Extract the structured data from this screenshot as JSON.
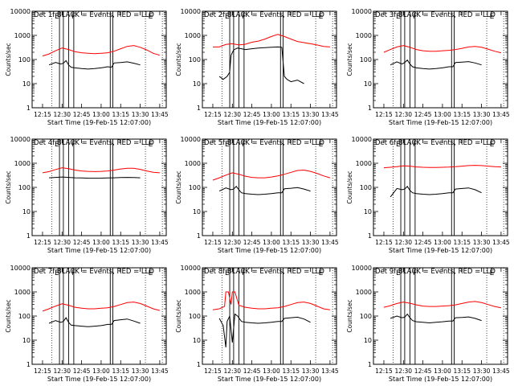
{
  "figure": {
    "panel_title_suffix": "BLACK = Events, RED = LLD",
    "xlabel": "Start Time (19-Feb-15 12:07:00)",
    "ylabel": "Counts/sec",
    "x_ticks": [
      "12:15",
      "12:30",
      "12:45",
      "13:00",
      "13:15",
      "13:30",
      "13:45"
    ],
    "y_ticks": [
      "1",
      "10",
      "100",
      "1000",
      "10000"
    ],
    "marker_label_start": "E",
    "marker_label_flare": "F",
    "colors": {
      "events": "#000000",
      "lld": "#ff0000",
      "axes": "#000000"
    }
  },
  "chart_data": [
    {
      "type": "line",
      "title": "Det 1f",
      "xlabel": "Start Time (19-Feb-15 12:07:00)",
      "ylabel": "Counts/sec",
      "y_scale": "log",
      "ylim": [
        1,
        10000
      ],
      "x_ticks": [
        "12:15",
        "12:30",
        "12:45",
        "13:00",
        "13:15",
        "13:30",
        "13:45"
      ],
      "series": [
        {
          "name": "Events",
          "color": "#000000",
          "x": [
            "12:20",
            "12:25",
            "12:29",
            "12:31",
            "12:33",
            "12:35",
            "12:37",
            "12:40",
            "12:45",
            "12:50",
            "12:55",
            "13:00",
            "13:05",
            "13:08",
            "13:10",
            "13:15",
            "13:20",
            "13:25",
            "13:30"
          ],
          "values": [
            60,
            75,
            65,
            70,
            90,
            60,
            48,
            45,
            42,
            40,
            42,
            45,
            50,
            48,
            72,
            75,
            80,
            70,
            60
          ]
        },
        {
          "name": "LLD",
          "color": "#ff0000",
          "x": [
            "12:15",
            "12:20",
            "12:25",
            "12:30",
            "12:35",
            "12:40",
            "12:45",
            "12:50",
            "12:55",
            "13:00",
            "13:05",
            "13:10",
            "13:15",
            "13:20",
            "13:25",
            "13:30",
            "13:35",
            "13:40",
            "13:45"
          ],
          "values": [
            140,
            170,
            230,
            300,
            260,
            210,
            190,
            180,
            175,
            180,
            190,
            220,
            280,
            350,
            380,
            320,
            250,
            180,
            150
          ]
        }
      ]
    },
    {
      "type": "line",
      "title": "Det 2f",
      "xlabel": "Start Time (19-Feb-15 12:07:00)",
      "ylabel": "Counts/sec",
      "y_scale": "log",
      "ylim": [
        1,
        10000
      ],
      "x_ticks": [
        "12:15",
        "12:30",
        "12:45",
        "13:00",
        "13:15",
        "13:30",
        "13:45"
      ],
      "series": [
        {
          "name": "Events",
          "color": "#000000",
          "x": [
            "12:20",
            "12:23",
            "12:26",
            "12:28",
            "12:29",
            "12:31",
            "12:34",
            "12:37",
            "12:40",
            "12:45",
            "12:50",
            "12:55",
            "13:00",
            "13:05",
            "13:08",
            "13:10",
            "13:12",
            "13:15",
            "13:20",
            "13:25"
          ],
          "values": [
            20,
            15,
            20,
            30,
            150,
            250,
            300,
            280,
            260,
            280,
            300,
            310,
            320,
            330,
            320,
            20,
            15,
            12,
            14,
            10
          ]
        },
        {
          "name": "LLD",
          "color": "#ff0000",
          "x": [
            "12:15",
            "12:20",
            "12:25",
            "12:30",
            "12:35",
            "12:40",
            "12:45",
            "12:50",
            "12:55",
            "13:00",
            "13:05",
            "13:10",
            "13:15",
            "13:20",
            "13:25",
            "13:30",
            "13:35",
            "13:40",
            "13:45"
          ],
          "values": [
            330,
            330,
            420,
            450,
            400,
            430,
            520,
            580,
            700,
            900,
            1100,
            900,
            700,
            560,
            500,
            450,
            400,
            350,
            330
          ]
        }
      ]
    },
    {
      "type": "line",
      "title": "Det 3f",
      "xlabel": "Start Time (19-Feb-15 12:07:00)",
      "ylabel": "Counts/sec",
      "y_scale": "log",
      "ylim": [
        1,
        10000
      ],
      "x_ticks": [
        "12:15",
        "12:30",
        "12:45",
        "13:00",
        "13:15",
        "13:30",
        "13:45"
      ],
      "series": [
        {
          "name": "Events",
          "color": "#000000",
          "x": [
            "12:20",
            "12:25",
            "12:29",
            "12:31",
            "12:33",
            "12:35",
            "12:37",
            "12:40",
            "12:45",
            "12:50",
            "12:55",
            "13:00",
            "13:05",
            "13:08",
            "13:10",
            "13:15",
            "13:20",
            "13:25",
            "13:30"
          ],
          "values": [
            60,
            80,
            65,
            75,
            95,
            65,
            50,
            45,
            42,
            40,
            42,
            45,
            50,
            50,
            75,
            78,
            82,
            72,
            60
          ]
        },
        {
          "name": "LLD",
          "color": "#ff0000",
          "x": [
            "12:15",
            "12:20",
            "12:25",
            "12:30",
            "12:35",
            "12:40",
            "12:45",
            "12:50",
            "12:55",
            "13:00",
            "13:05",
            "13:10",
            "13:15",
            "13:20",
            "13:25",
            "13:30",
            "13:35",
            "13:40",
            "13:45"
          ],
          "values": [
            200,
            260,
            330,
            380,
            320,
            260,
            230,
            220,
            220,
            230,
            240,
            260,
            290,
            330,
            350,
            320,
            270,
            220,
            190
          ]
        }
      ]
    },
    {
      "type": "line",
      "title": "Det 4f",
      "xlabel": "Start Time (19-Feb-15 12:07:00)",
      "ylabel": "Counts/sec",
      "y_scale": "log",
      "ylim": [
        1,
        10000
      ],
      "x_ticks": [
        "12:15",
        "12:30",
        "12:45",
        "13:00",
        "13:15",
        "13:30",
        "13:45"
      ],
      "series": [
        {
          "name": "Events",
          "color": "#000000",
          "x": [
            "12:20",
            "12:25",
            "12:30",
            "12:35",
            "12:40",
            "12:45",
            "12:50",
            "12:55",
            "13:00",
            "13:05",
            "13:10",
            "13:15",
            "13:20",
            "13:25",
            "13:30"
          ],
          "values": [
            250,
            260,
            270,
            260,
            250,
            245,
            240,
            240,
            240,
            245,
            250,
            255,
            260,
            255,
            250
          ]
        },
        {
          "name": "LLD",
          "color": "#ff0000",
          "x": [
            "12:15",
            "12:20",
            "12:25",
            "12:30",
            "12:35",
            "12:40",
            "12:45",
            "12:50",
            "12:55",
            "13:00",
            "13:05",
            "13:10",
            "13:15",
            "13:20",
            "13:25",
            "13:30",
            "13:35",
            "13:40",
            "13:45"
          ],
          "values": [
            400,
            450,
            550,
            650,
            600,
            520,
            480,
            460,
            450,
            460,
            480,
            520,
            580,
            620,
            620,
            560,
            480,
            420,
            400
          ]
        }
      ]
    },
    {
      "type": "line",
      "title": "Det 5f",
      "xlabel": "Start Time (19-Feb-15 12:07:00)",
      "ylabel": "Counts/sec",
      "y_scale": "log",
      "ylim": [
        1,
        10000
      ],
      "x_ticks": [
        "12:15",
        "12:30",
        "12:45",
        "13:00",
        "13:15",
        "13:30",
        "13:45"
      ],
      "series": [
        {
          "name": "Events",
          "color": "#000000",
          "x": [
            "12:20",
            "12:25",
            "12:29",
            "12:31",
            "12:33",
            "12:35",
            "12:37",
            "12:40",
            "12:45",
            "12:50",
            "12:55",
            "13:00",
            "13:05",
            "13:08",
            "13:10",
            "13:15",
            "13:20",
            "13:25",
            "13:30"
          ],
          "values": [
            70,
            95,
            80,
            85,
            110,
            80,
            60,
            55,
            52,
            50,
            52,
            55,
            60,
            60,
            88,
            92,
            98,
            85,
            70
          ]
        },
        {
          "name": "LLD",
          "color": "#ff0000",
          "x": [
            "12:15",
            "12:20",
            "12:25",
            "12:30",
            "12:35",
            "12:40",
            "12:45",
            "12:50",
            "12:55",
            "13:00",
            "13:05",
            "13:10",
            "13:15",
            "13:20",
            "13:25",
            "13:30",
            "13:35",
            "13:40",
            "13:45"
          ],
          "values": [
            200,
            250,
            320,
            400,
            350,
            290,
            260,
            250,
            250,
            270,
            300,
            350,
            420,
            500,
            520,
            460,
            380,
            300,
            250
          ]
        }
      ]
    },
    {
      "type": "line",
      "title": "Det 6f",
      "xlabel": "Start Time (19-Feb-15 12:07:00)",
      "ylabel": "Counts/sec",
      "y_scale": "log",
      "ylim": [
        1,
        10000
      ],
      "x_ticks": [
        "12:15",
        "12:30",
        "12:45",
        "13:00",
        "13:15",
        "13:30",
        "13:45"
      ],
      "series": [
        {
          "name": "Events",
          "color": "#000000",
          "x": [
            "12:20",
            "12:25",
            "12:29",
            "12:31",
            "12:33",
            "12:35",
            "12:37",
            "12:40",
            "12:45",
            "12:50",
            "12:55",
            "13:00",
            "13:05",
            "13:08",
            "13:10",
            "13:15",
            "13:20",
            "13:25",
            "13:30"
          ],
          "values": [
            40,
            90,
            80,
            85,
            110,
            75,
            60,
            55,
            52,
            50,
            52,
            55,
            60,
            60,
            85,
            90,
            95,
            80,
            60
          ]
        },
        {
          "name": "LLD",
          "color": "#ff0000",
          "x": [
            "12:15",
            "12:20",
            "12:25",
            "12:30",
            "12:35",
            "12:40",
            "12:45",
            "12:50",
            "12:55",
            "13:00",
            "13:05",
            "13:10",
            "13:15",
            "13:20",
            "13:25",
            "13:30",
            "13:35",
            "13:40",
            "13:45"
          ],
          "values": [
            650,
            680,
            720,
            780,
            760,
            700,
            680,
            670,
            670,
            680,
            690,
            720,
            760,
            800,
            820,
            800,
            760,
            720,
            700
          ]
        }
      ]
    },
    {
      "type": "line",
      "title": "Det 7f",
      "xlabel": "Start Time (19-Feb-15 12:07:00)",
      "ylabel": "Counts/sec",
      "y_scale": "log",
      "ylim": [
        1,
        10000
      ],
      "x_ticks": [
        "12:15",
        "12:30",
        "12:45",
        "13:00",
        "13:15",
        "13:30",
        "13:45"
      ],
      "series": [
        {
          "name": "Events",
          "color": "#000000",
          "x": [
            "12:20",
            "12:25",
            "12:29",
            "12:31",
            "12:33",
            "12:35",
            "12:37",
            "12:40",
            "12:45",
            "12:50",
            "12:55",
            "13:00",
            "13:05",
            "13:08",
            "13:10",
            "13:15",
            "13:20",
            "13:25",
            "13:30"
          ],
          "values": [
            50,
            65,
            55,
            60,
            85,
            55,
            42,
            40,
            38,
            36,
            38,
            40,
            45,
            45,
            65,
            70,
            75,
            62,
            50
          ]
        },
        {
          "name": "LLD",
          "color": "#ff0000",
          "x": [
            "12:15",
            "12:20",
            "12:25",
            "12:30",
            "12:35",
            "12:40",
            "12:45",
            "12:50",
            "12:55",
            "13:00",
            "13:05",
            "13:10",
            "13:15",
            "13:20",
            "13:25",
            "13:30",
            "13:35",
            "13:40",
            "13:45"
          ],
          "values": [
            160,
            200,
            260,
            320,
            280,
            230,
            210,
            200,
            200,
            210,
            220,
            250,
            300,
            360,
            380,
            330,
            260,
            200,
            170
          ]
        }
      ]
    },
    {
      "type": "line",
      "title": "Det 8f",
      "xlabel": "Start Time (19-Feb-15 12:07:00)",
      "ylabel": "Counts/sec",
      "y_scale": "log",
      "ylim": [
        1,
        10000
      ],
      "x_ticks": [
        "12:15",
        "12:30",
        "12:45",
        "13:00",
        "13:15",
        "13:30",
        "13:45"
      ],
      "series": [
        {
          "name": "Events",
          "color": "#000000",
          "x": [
            "12:20",
            "12:23",
            "12:25",
            "12:26",
            "12:28",
            "12:30",
            "12:32",
            "12:34",
            "12:37",
            "12:40",
            "12:45",
            "12:50",
            "12:55",
            "13:00",
            "13:05",
            "13:08",
            "13:10",
            "13:15",
            "13:20",
            "13:25",
            "13:30"
          ],
          "values": [
            80,
            40,
            5,
            60,
            100,
            8,
            120,
            100,
            60,
            55,
            52,
            50,
            52,
            55,
            60,
            60,
            80,
            85,
            90,
            75,
            55
          ]
        },
        {
          "name": "LLD",
          "color": "#ff0000",
          "x": [
            "12:15",
            "12:20",
            "12:24",
            "12:25",
            "12:27",
            "12:29",
            "12:30",
            "12:32",
            "12:35",
            "12:40",
            "12:45",
            "12:50",
            "12:55",
            "13:00",
            "13:05",
            "13:10",
            "13:15",
            "13:20",
            "13:25",
            "13:30",
            "13:35",
            "13:40",
            "13:45"
          ],
          "values": [
            180,
            200,
            250,
            1000,
            1000,
            300,
            1000,
            1000,
            280,
            230,
            210,
            200,
            200,
            210,
            220,
            250,
            300,
            360,
            380,
            330,
            260,
            200,
            180
          ]
        }
      ]
    },
    {
      "type": "line",
      "title": "Det 9f",
      "xlabel": "Start Time (19-Feb-15 12:07:00)",
      "ylabel": "Counts/sec",
      "y_scale": "log",
      "ylim": [
        1,
        10000
      ],
      "x_ticks": [
        "12:15",
        "12:30",
        "12:45",
        "13:00",
        "13:15",
        "13:30",
        "13:45"
      ],
      "series": [
        {
          "name": "Events",
          "color": "#000000",
          "x": [
            "12:20",
            "12:25",
            "12:29",
            "12:31",
            "12:33",
            "12:35",
            "12:37",
            "12:40",
            "12:45",
            "12:50",
            "12:55",
            "13:00",
            "13:05",
            "13:08",
            "13:10",
            "13:15",
            "13:20",
            "13:25",
            "13:30"
          ],
          "values": [
            80,
            100,
            85,
            90,
            120,
            85,
            65,
            58,
            55,
            52,
            55,
            58,
            62,
            62,
            85,
            88,
            92,
            80,
            65
          ]
        },
        {
          "name": "LLD",
          "color": "#ff0000",
          "x": [
            "12:15",
            "12:20",
            "12:25",
            "12:30",
            "12:35",
            "12:40",
            "12:45",
            "12:50",
            "12:55",
            "13:00",
            "13:05",
            "13:10",
            "13:15",
            "13:20",
            "13:25",
            "13:30",
            "13:35",
            "13:40",
            "13:45"
          ],
          "values": [
            230,
            270,
            330,
            380,
            340,
            290,
            260,
            250,
            250,
            260,
            270,
            290,
            330,
            380,
            400,
            360,
            300,
            250,
            220
          ]
        }
      ]
    }
  ]
}
